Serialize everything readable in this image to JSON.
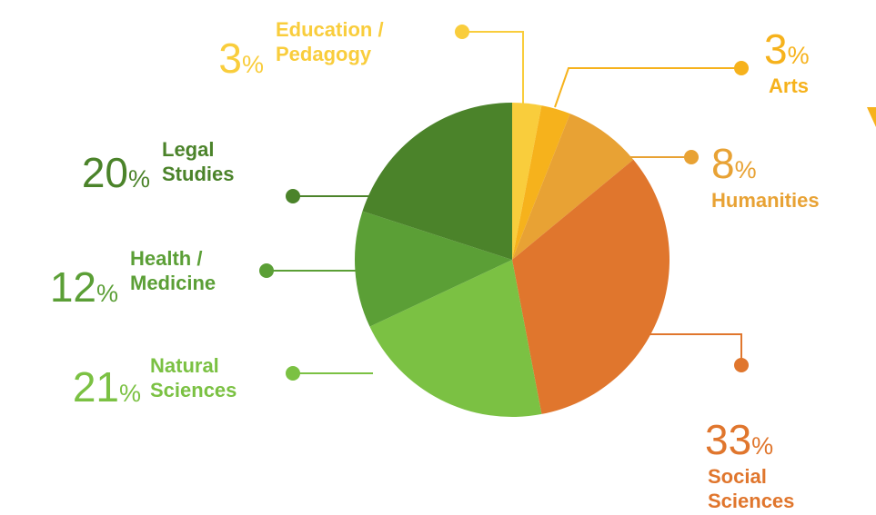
{
  "chart_data": {
    "type": "pie",
    "categories": [
      "Education / Pedagogy",
      "Arts",
      "Humanities",
      "Social Sciences",
      "Natural Sciences",
      "Health / Medicine",
      "Legal Studies"
    ],
    "values": [
      3,
      3,
      8,
      33,
      21,
      12,
      20
    ],
    "value_labels": [
      "3%",
      "3%",
      "8%",
      "33%",
      "21%",
      "12%",
      "20%"
    ],
    "colors": [
      "#f9cd3c",
      "#f6b21c",
      "#e8a234",
      "#e0762d",
      "#7bc143",
      "#5b9f36",
      "#4b832a"
    ]
  }
}
